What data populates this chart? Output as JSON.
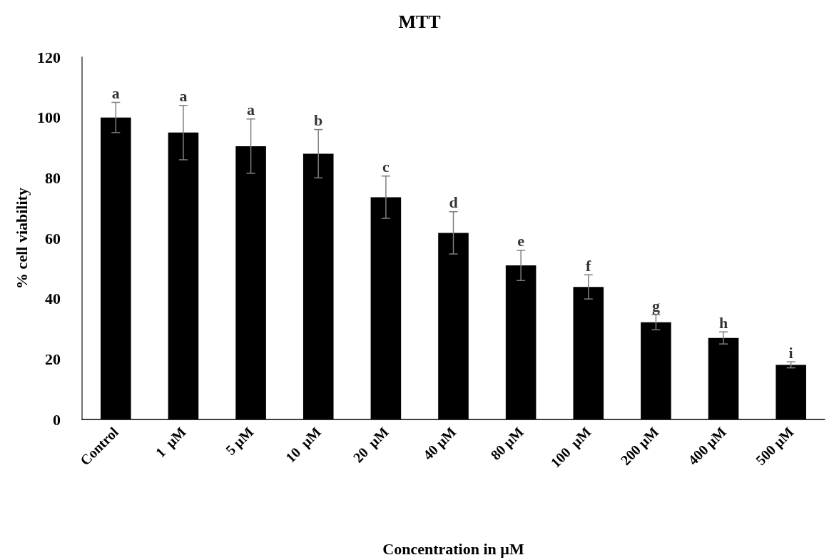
{
  "chart_data": {
    "type": "bar",
    "title": "MTT",
    "xlabel": "Concentration in µM",
    "ylabel": "% cell viability",
    "categories": [
      "Control",
      "1  µM",
      "5 µM",
      "10  µM",
      "20  µM",
      "40 µM",
      "80 µM",
      "100  µM",
      "200 µM",
      "400 µM",
      "500 µM"
    ],
    "values": [
      100,
      95,
      90.5,
      88,
      73.6,
      61.8,
      51,
      43.9,
      32.2,
      27,
      18.1
    ],
    "errors": [
      5,
      9,
      9,
      8,
      7,
      7,
      5,
      4,
      2.5,
      2,
      1
    ],
    "color": "#000000",
    "ylim": [
      0,
      120
    ],
    "yticks": [
      0,
      20,
      40,
      60,
      80,
      100,
      120
    ],
    "grid": false,
    "annotations": [
      {
        "text": "a",
        "x": "Control",
        "y": 105
      },
      {
        "text": "a",
        "x": "1  µM",
        "y": 104
      },
      {
        "text": "a",
        "x": "5 µM",
        "y": 99.5
      },
      {
        "text": "b",
        "x": "10  µM",
        "y": 96
      },
      {
        "text": "c",
        "x": "20  µM",
        "y": 80.6
      },
      {
        "text": "d",
        "x": "40 µM",
        "y": 68.8
      },
      {
        "text": "e",
        "x": "80 µM",
        "y": 56
      },
      {
        "text": "f",
        "x": "100  µM",
        "y": 47.9
      },
      {
        "text": "g",
        "x": "200 µM",
        "y": 34.7
      },
      {
        "text": "h",
        "x": "400 µM",
        "y": 29
      },
      {
        "text": "i",
        "x": "500 µM",
        "y": 19.1
      }
    ]
  }
}
